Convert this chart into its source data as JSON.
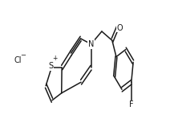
{
  "bg_color": "#ffffff",
  "line_color": "#1a1a1a",
  "lw": 1.1,
  "fs": 7,
  "xlim": [
    0,
    5.5
  ],
  "ylim": [
    0,
    1.3
  ]
}
